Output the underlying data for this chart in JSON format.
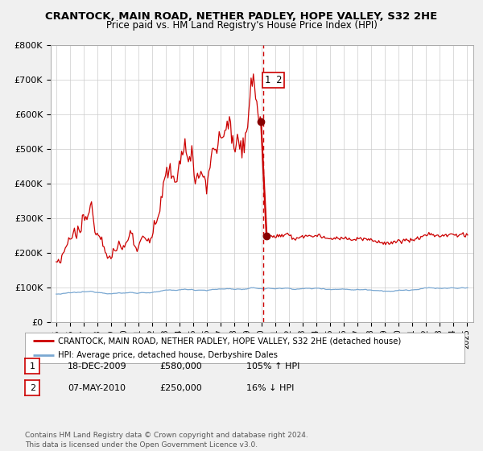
{
  "title": "CRANTOCK, MAIN ROAD, NETHER PADLEY, HOPE VALLEY, S32 2HE",
  "subtitle": "Price paid vs. HM Land Registry's House Price Index (HPI)",
  "legend_line1": "CRANTOCK, MAIN ROAD, NETHER PADLEY, HOPE VALLEY, S32 2HE (detached house)",
  "legend_line2": "HPI: Average price, detached house, Derbyshire Dales",
  "table_rows": [
    {
      "num": "1",
      "date": "18-DEC-2009",
      "price": "£580,000",
      "hpi": "105% ↑ HPI"
    },
    {
      "num": "2",
      "date": "07-MAY-2010",
      "price": "£250,000",
      "hpi": "16% ↓ HPI"
    }
  ],
  "footer": "Contains HM Land Registry data © Crown copyright and database right 2024.\nThis data is licensed under the Open Government Licence v3.0.",
  "transaction1_date": 2009.96,
  "transaction1_price": 580000,
  "transaction2_date": 2010.36,
  "transaction2_price": 250000,
  "vline_x": 2010.15,
  "hpi_color": "#7aa8d2",
  "price_color": "#cc0000",
  "dot_color": "#880000",
  "background_color": "#f0f0f0",
  "plot_bg_color": "#ffffff",
  "grid_color": "#cccccc",
  "ylim": [
    0,
    800000
  ],
  "xlim_start": 1994.6,
  "xlim_end": 2025.5,
  "yticks": [
    0,
    100000,
    200000,
    300000,
    400000,
    500000,
    600000,
    700000,
    800000
  ],
  "ytick_labels": [
    "£0",
    "£100K",
    "£200K",
    "£300K",
    "£400K",
    "£500K",
    "£600K",
    "£700K",
    "£800K"
  ],
  "xticks": [
    1995,
    1996,
    1997,
    1998,
    1999,
    2000,
    2001,
    2002,
    2003,
    2004,
    2005,
    2006,
    2007,
    2008,
    2009,
    2010,
    2011,
    2012,
    2013,
    2014,
    2015,
    2016,
    2017,
    2018,
    2019,
    2020,
    2021,
    2022,
    2023,
    2024,
    2025
  ]
}
